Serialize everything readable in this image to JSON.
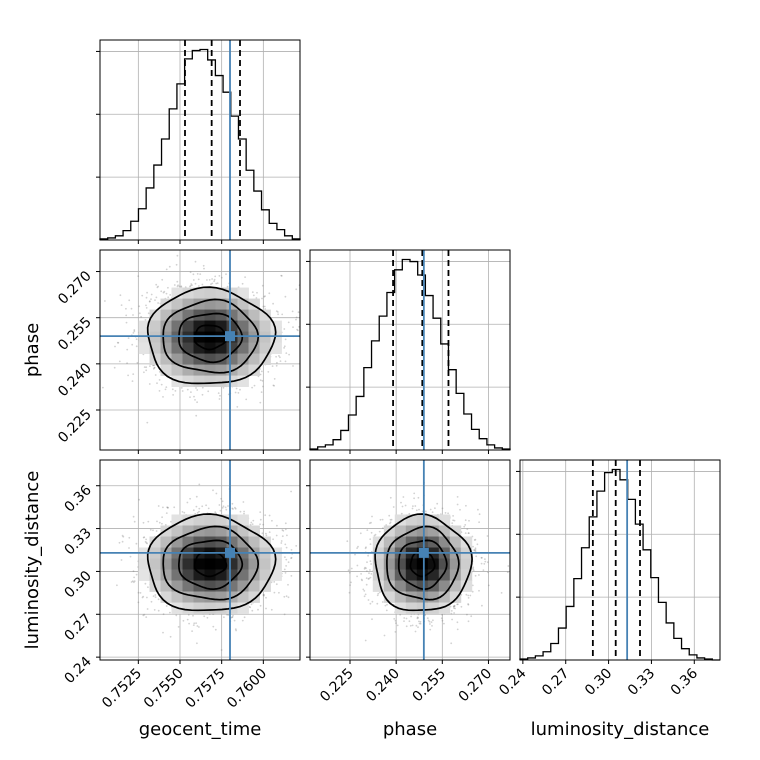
{
  "chart_data": {
    "type": "corner",
    "title": "",
    "parameters": [
      {
        "name": "geocent_time",
        "label": "geocent_time",
        "range": [
          0.7502,
          0.7622
        ],
        "ticks": [
          0.7525,
          0.755,
          0.7575,
          0.76
        ],
        "tick_labels": [
          "0.7525",
          "0.7550",
          "0.7575",
          "0.7600"
        ],
        "truth": 0.758,
        "median": 0.7569,
        "quantiles": [
          0.7553,
          0.7569,
          0.7586
        ],
        "hist_values": [
          1,
          2,
          4,
          9,
          18,
          30,
          50,
          72,
          97,
          126,
          150,
          174,
          182,
          183,
          173,
          158,
          142,
          119,
          97,
          67,
          47,
          29,
          16,
          10,
          4,
          1
        ]
      },
      {
        "name": "phase",
        "label": "phase",
        "range": [
          0.212,
          0.277
        ],
        "ticks": [
          0.225,
          0.24,
          0.255,
          0.27
        ],
        "tick_labels": [
          "0.225",
          "0.240",
          "0.255",
          "0.270"
        ],
        "truth": 0.249,
        "median": 0.2485,
        "quantiles": [
          0.239,
          0.2485,
          0.257
        ],
        "hist_values": [
          1,
          3,
          5,
          10,
          19,
          34,
          52,
          80,
          106,
          130,
          153,
          175,
          185,
          183,
          170,
          150,
          128,
          103,
          78,
          55,
          35,
          20,
          11,
          5,
          2,
          1
        ]
      },
      {
        "name": "luminosity_distance",
        "label": "luminosity_distance",
        "range": [
          0.238,
          0.378
        ],
        "ticks": [
          0.24,
          0.27,
          0.3,
          0.33,
          0.36
        ],
        "tick_labels": [
          "0.24",
          "0.27",
          "0.30",
          "0.33",
          "0.36"
        ],
        "truth": 0.313,
        "median": 0.305,
        "quantiles": [
          0.289,
          0.305,
          0.322
        ],
        "hist_values": [
          1,
          2,
          4,
          8,
          16,
          31,
          52,
          79,
          109,
          139,
          164,
          182,
          185,
          175,
          156,
          132,
          107,
          80,
          56,
          36,
          21,
          11,
          5,
          2,
          1,
          0
        ]
      }
    ],
    "pair_density": [
      {
        "x": "geocent_time",
        "y": "phase",
        "center": [
          0.7568,
          0.2487
        ],
        "spread": [
          0.0019,
          0.0078
        ]
      },
      {
        "x": "geocent_time",
        "y": "luminosity_distance",
        "center": [
          0.7568,
          0.3052
        ],
        "spread": [
          0.0019,
          0.0168
        ]
      },
      {
        "x": "phase",
        "y": "luminosity_distance",
        "center": [
          0.2485,
          0.3052
        ],
        "spread": [
          0.0078,
          0.0168
        ]
      }
    ],
    "contour_levels": [
      "0.5 sigma",
      "1 sigma",
      "1.5 sigma",
      "2 sigma"
    ],
    "colors": {
      "truth": "#4682b4",
      "hist_line": "#000000",
      "grid": "#b0b0b0",
      "scatter": "#7f7f7f",
      "density_dark": "#000000"
    },
    "grid": true,
    "legend": "none"
  }
}
